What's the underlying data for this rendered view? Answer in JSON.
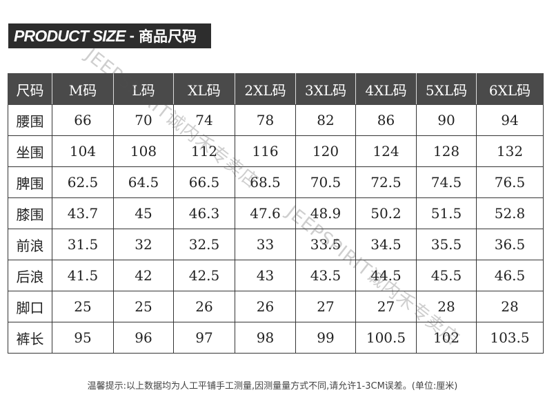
{
  "title": {
    "en": "PRODUCT SIZE",
    "separator": "-",
    "zh": "商品尺码"
  },
  "table": {
    "headers": [
      "尺码",
      "M码",
      "L码",
      "XL码",
      "2XL码",
      "3XL码",
      "4XL码",
      "5XL码",
      "6XL码"
    ],
    "rows": [
      {
        "label": "腰围",
        "values": [
          "66",
          "70",
          "74",
          "78",
          "82",
          "86",
          "90",
          "94"
        ]
      },
      {
        "label": "坐围",
        "values": [
          "104",
          "108",
          "112",
          "116",
          "120",
          "124",
          "128",
          "132"
        ]
      },
      {
        "label": "脾围",
        "values": [
          "62.5",
          "64.5",
          "66.5",
          "68.5",
          "70.5",
          "72.5",
          "74.5",
          "76.5"
        ]
      },
      {
        "label": "膝围",
        "values": [
          "43.7",
          "45",
          "46.3",
          "47.6",
          "48.9",
          "50.2",
          "51.5",
          "52.8"
        ]
      },
      {
        "label": "前浪",
        "values": [
          "31.5",
          "32",
          "32.5",
          "33",
          "33.5",
          "34.5",
          "35.5",
          "36.5"
        ]
      },
      {
        "label": "后浪",
        "values": [
          "41.5",
          "42",
          "42.5",
          "43",
          "43.5",
          "44.5",
          "45.5",
          "46.5"
        ]
      },
      {
        "label": "脚口",
        "values": [
          "25",
          "25",
          "26",
          "26",
          "27",
          "27",
          "28",
          "28"
        ]
      },
      {
        "label": "裤长",
        "values": [
          "95",
          "96",
          "97",
          "98",
          "99",
          "100.5",
          "102",
          "103.5"
        ]
      }
    ]
  },
  "note": "温馨提示:以上数据均为人工平铺手工测量,因测量量方式不同,请允许1-3CM误差。(单位:厘米)",
  "watermark": {
    "segments": [
      "JEEPSPIRIT诚内禾专卖店",
      "JEEPSPIRIT诚内禾专卖店"
    ]
  }
}
